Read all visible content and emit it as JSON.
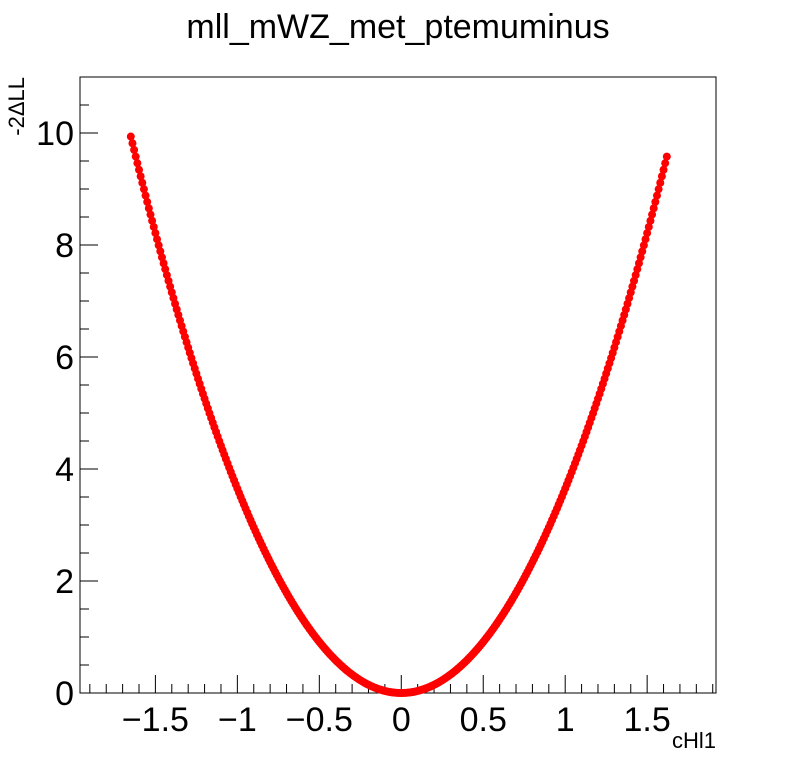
{
  "chart_data": {
    "type": "scatter",
    "title": "mll_mWZ_met_ptemuminus",
    "xlabel": "cHl1",
    "ylabel": "-2ΔLL",
    "xlim": [
      -1.96,
      1.92
    ],
    "ylim": [
      0,
      11
    ],
    "x_ticks": [
      -1.5,
      -1,
      -0.5,
      0,
      0.5,
      1,
      1.5
    ],
    "x_tick_labels": [
      "−1.5",
      "−1",
      "−0.5",
      "0",
      "0.5",
      "1",
      "1.5"
    ],
    "y_ticks": [
      0,
      2,
      4,
      6,
      8,
      10
    ],
    "y_tick_labels": [
      "0",
      "2",
      "4",
      "6",
      "8",
      "10"
    ],
    "grid": false,
    "marker_color": "#ff0000",
    "series": [
      {
        "x_start": -1.65,
        "x_end": 1.62,
        "step": 0.01,
        "curvature": 3.65,
        "x_min": 0.0,
        "y_min": 0.0
      }
    ]
  }
}
